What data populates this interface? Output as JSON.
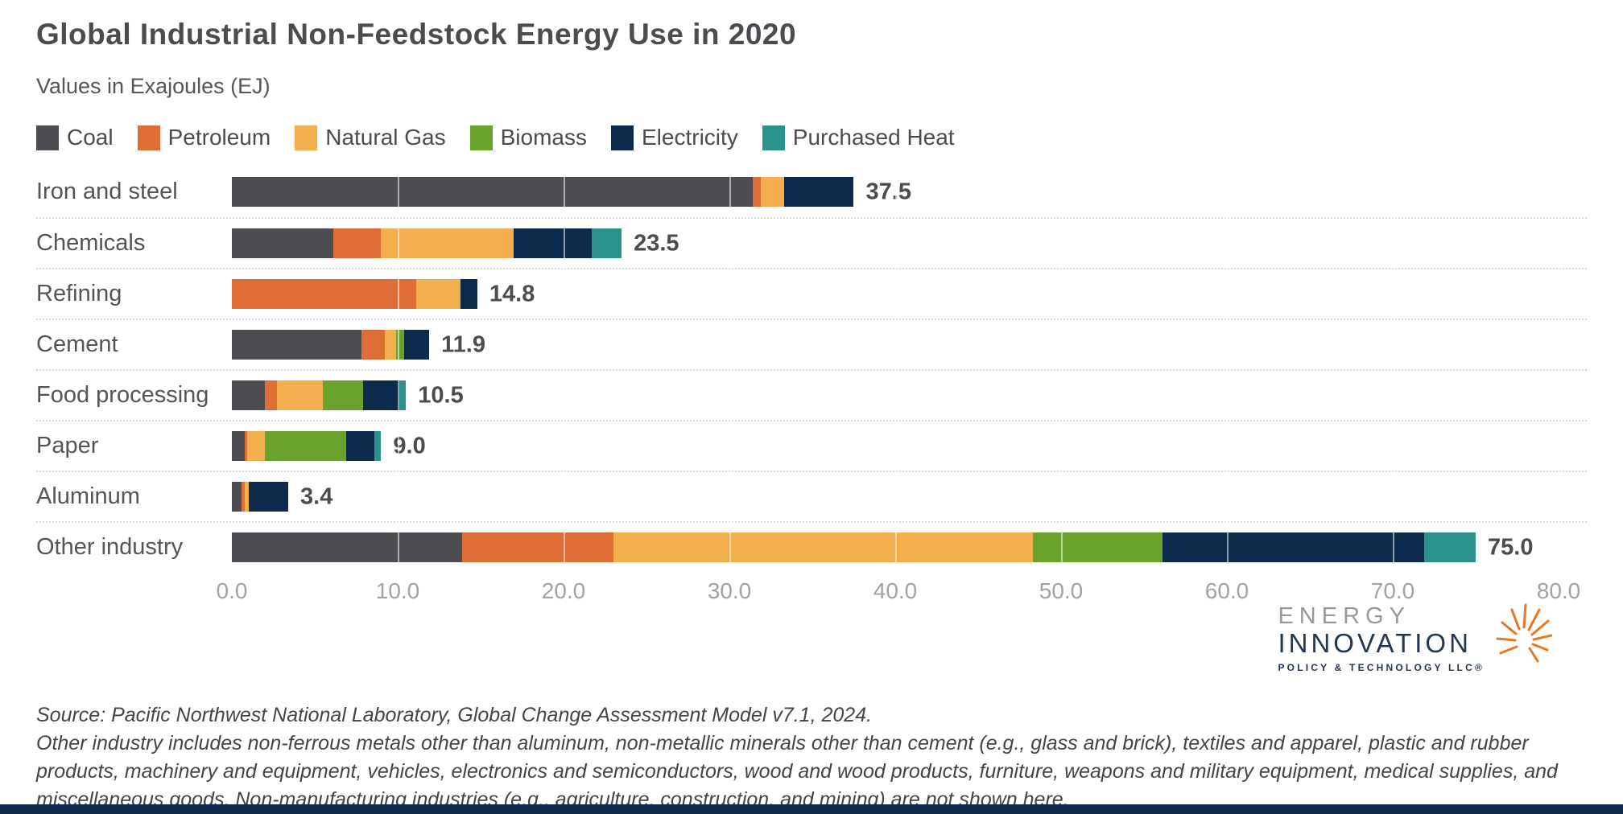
{
  "title": "Global Industrial Non-Feedstock Energy Use in 2020",
  "subtitle": "Values in Exajoules (EJ)",
  "colors": {
    "coal": "#4C4C51",
    "petroleum": "#DE6E35",
    "natural_gas": "#F3AF4D",
    "biomass": "#69A32C",
    "electricity": "#0E2A4D",
    "purchased_heat": "#2A918B",
    "footer_strip": "#13294B",
    "logo_orange": "#E87722"
  },
  "legend": [
    {
      "label": "Coal",
      "color": "#4C4C51"
    },
    {
      "label": "Petroleum",
      "color": "#DE6E35"
    },
    {
      "label": "Natural Gas",
      "color": "#F3AF4D"
    },
    {
      "label": "Biomass",
      "color": "#69A32C"
    },
    {
      "label": "Electricity",
      "color": "#0E2A4D"
    },
    {
      "label": "Purchased Heat",
      "color": "#2A918B"
    }
  ],
  "chart_data": {
    "type": "bar",
    "orientation": "horizontal-stacked",
    "title": "Global Industrial Non-Feedstock Energy Use in 2020",
    "subtitle": "Values in Exajoules (EJ)",
    "xlabel": "",
    "ylabel": "",
    "xlim": [
      0,
      80
    ],
    "x_ticks": [
      "0.0",
      "10.0",
      "20.0",
      "30.0",
      "40.0",
      "50.0",
      "60.0",
      "70.0",
      "80.0"
    ],
    "grid": "vertical, every 10 EJ, white over bars",
    "legend_position": "top",
    "categories": [
      "Iron and steel",
      "Chemicals",
      "Refining",
      "Cement",
      "Food processing",
      "Paper",
      "Aluminum",
      "Other industry"
    ],
    "totals": [
      37.5,
      23.5,
      14.8,
      11.9,
      10.5,
      9.0,
      3.4,
      75.0
    ],
    "total_labels": [
      "37.5",
      "23.5",
      "14.8",
      "11.9",
      "10.5",
      "9.0",
      "3.4",
      "75.0"
    ],
    "series": [
      {
        "name": "Coal",
        "color": "#4C4C51",
        "values": [
          31.4,
          6.1,
          0,
          7.8,
          2.0,
          0.8,
          0.6,
          13.9
        ]
      },
      {
        "name": "Petroleum",
        "color": "#DE6E35",
        "values": [
          0.5,
          2.9,
          11.1,
          1.4,
          0.7,
          0.1,
          0.2,
          9.1
        ]
      },
      {
        "name": "Natural Gas",
        "color": "#F3AF4D",
        "values": [
          1.4,
          8.0,
          2.7,
          0.7,
          2.8,
          1.1,
          0.2,
          25.3
        ]
      },
      {
        "name": "Biomass",
        "color": "#69A32C",
        "values": [
          0,
          0,
          0,
          0.5,
          2.4,
          4.9,
          0,
          7.8
        ]
      },
      {
        "name": "Electricity",
        "color": "#0E2A4D",
        "values": [
          4.2,
          4.7,
          1.0,
          1.5,
          2.2,
          1.7,
          2.4,
          15.8
        ]
      },
      {
        "name": "Purchased Heat",
        "color": "#2A918B",
        "values": [
          0,
          1.8,
          0,
          0,
          0.4,
          0.4,
          0,
          3.1
        ]
      }
    ]
  },
  "logo": {
    "line1": "ENERGY",
    "line2": "INNOVATION",
    "line3": "POLICY & TECHNOLOGY LLC®"
  },
  "footnotes": {
    "source": "Source: Pacific Northwest National Laboratory, Global Change Assessment Model v7.1, 2024.",
    "note": "Other industry includes non-ferrous metals other than aluminum, non-metallic minerals other than cement (e.g., glass and brick), textiles and apparel, plastic and rubber products, machinery and equipment, vehicles, electronics and semiconductors, wood and wood products, furniture, weapons and military equipment, medical supplies, and miscellaneous goods. Non-manufacturing industries (e.g., agriculture, construction, and mining) are not shown here."
  }
}
